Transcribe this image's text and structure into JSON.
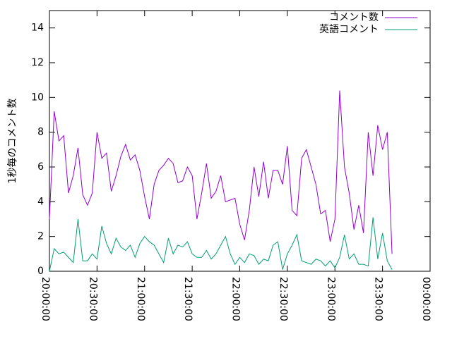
{
  "chart_data": {
    "type": "line",
    "y_label": "1秒毎のコメント数",
    "x": [
      "20:00:00",
      "20:03:00",
      "20:06:00",
      "20:09:00",
      "20:12:00",
      "20:15:00",
      "20:18:00",
      "20:21:00",
      "20:24:00",
      "20:27:00",
      "20:30:00",
      "20:33:00",
      "20:36:00",
      "20:39:00",
      "20:42:00",
      "20:45:00",
      "20:48:00",
      "20:51:00",
      "20:54:00",
      "20:57:00",
      "21:00:00",
      "21:03:00",
      "21:06:00",
      "21:09:00",
      "21:12:00",
      "21:15:00",
      "21:18:00",
      "21:21:00",
      "21:24:00",
      "21:27:00",
      "21:30:00",
      "21:33:00",
      "21:36:00",
      "21:39:00",
      "21:42:00",
      "21:45:00",
      "21:48:00",
      "21:51:00",
      "21:54:00",
      "21:57:00",
      "22:00:00",
      "22:03:00",
      "22:06:00",
      "22:09:00",
      "22:12:00",
      "22:15:00",
      "22:18:00",
      "22:21:00",
      "22:24:00",
      "22:27:00",
      "22:30:00",
      "22:33:00",
      "22:36:00",
      "22:39:00",
      "22:42:00",
      "22:45:00",
      "22:48:00",
      "22:51:00",
      "22:54:00",
      "22:57:00",
      "23:00:00",
      "23:03:00",
      "23:06:00",
      "23:09:00",
      "23:12:00",
      "23:15:00",
      "23:18:00",
      "23:21:00",
      "23:24:00",
      "23:27:00",
      "23:30:00",
      "23:33:00",
      "23:36:00"
    ],
    "series": [
      {
        "name": "コメント数",
        "color": "#9400d3",
        "values": [
          3.0,
          9.2,
          7.5,
          7.8,
          4.5,
          5.5,
          7.1,
          4.4,
          3.8,
          4.5,
          8.0,
          6.5,
          6.8,
          4.6,
          5.5,
          6.6,
          7.3,
          6.4,
          6.7,
          5.8,
          4.3,
          3.0,
          5.0,
          5.8,
          6.1,
          6.5,
          6.2,
          5.1,
          5.2,
          6.0,
          5.5,
          3.0,
          4.5,
          6.2,
          4.2,
          4.6,
          5.5,
          4.0,
          4.1,
          4.2,
          2.7,
          1.8,
          3.5,
          6.0,
          4.3,
          6.3,
          4.2,
          5.8,
          5.8,
          5.0,
          7.2,
          3.5,
          3.2,
          6.5,
          7.0,
          6.0,
          5.0,
          3.3,
          3.5,
          1.7,
          3.0,
          10.4,
          6.0,
          4.5,
          2.4,
          3.8,
          2.2,
          8.0,
          5.5,
          8.4,
          7.0,
          8.0,
          1.0
        ]
      },
      {
        "name": "英語コメント",
        "color": "#009e73",
        "values": [
          0.0,
          1.3,
          1.0,
          1.1,
          0.8,
          0.5,
          3.0,
          0.6,
          0.6,
          1.0,
          0.7,
          2.6,
          1.6,
          1.0,
          1.9,
          1.4,
          1.2,
          1.5,
          0.8,
          1.6,
          2.0,
          1.7,
          1.5,
          1.0,
          0.5,
          1.9,
          1.0,
          1.5,
          1.4,
          1.7,
          1.0,
          0.8,
          0.8,
          1.2,
          0.7,
          1.0,
          1.5,
          2.0,
          1.0,
          0.4,
          0.8,
          0.5,
          1.0,
          0.9,
          0.4,
          0.7,
          0.6,
          1.5,
          1.7,
          0.1,
          1.0,
          1.5,
          2.1,
          0.6,
          0.5,
          0.4,
          0.7,
          0.6,
          0.3,
          0.6,
          0.2,
          0.8,
          2.1,
          0.7,
          1.0,
          0.4,
          0.4,
          0.3,
          3.1,
          0.7,
          2.2,
          0.6,
          0.1
        ]
      }
    ],
    "xlim": [
      "20:00:00",
      "00:00:00"
    ],
    "xticks": [
      "20:00:00",
      "20:30:00",
      "21:00:00",
      "21:30:00",
      "22:00:00",
      "22:30:00",
      "23:00:00",
      "23:30:00",
      "00:00:00"
    ],
    "ylim": [
      0,
      15
    ],
    "yticks": [
      0,
      2,
      4,
      6,
      8,
      10,
      12,
      14
    ],
    "legend": "top-right"
  }
}
